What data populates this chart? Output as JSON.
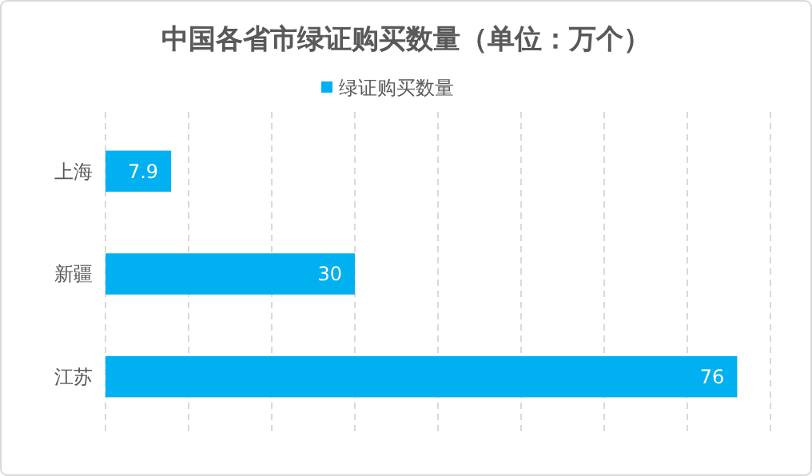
{
  "chart_data": {
    "type": "bar",
    "orientation": "horizontal",
    "title": "中国各省市绿证购买数量（单位：万个）",
    "categories": [
      "上海",
      "新疆",
      "江苏"
    ],
    "series": [
      {
        "name": "绿证购买数量",
        "color": "#00b0f0",
        "values": [
          7.9,
          30,
          76
        ]
      }
    ],
    "data_labels": true,
    "xlim": [
      0,
      80
    ],
    "xticks": [
      {
        "value": 0,
        "label": null
      },
      {
        "value": 10,
        "label": null
      },
      {
        "value": 20,
        "label": null
      },
      {
        "value": 30,
        "label": null
      },
      {
        "value": 40,
        "label": null
      },
      {
        "value": 50,
        "label": null
      },
      {
        "value": 60,
        "label": null
      },
      {
        "value": 70,
        "label": null
      },
      {
        "value": 80,
        "label": null
      }
    ],
    "tick_labels": "y",
    "grid": "x",
    "legend": "top"
  }
}
